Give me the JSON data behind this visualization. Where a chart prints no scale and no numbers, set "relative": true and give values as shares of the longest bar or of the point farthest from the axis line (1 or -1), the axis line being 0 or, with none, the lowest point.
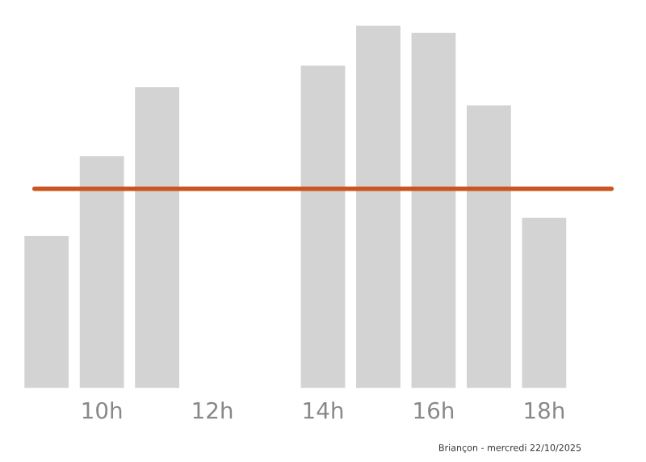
{
  "chart_data": {
    "type": "bar",
    "relative": true,
    "categories": [
      null,
      "10h",
      null,
      "12h",
      null,
      "14h",
      null,
      "16h",
      null,
      "18h",
      null
    ],
    "values": [
      0.42,
      0.64,
      0.83,
      0,
      0,
      0.89,
      1,
      0.98,
      0.78,
      0.47,
      0
    ],
    "color": "#d3d3d3",
    "ref_lines": [
      {
        "axis": "y",
        "value": 0.55,
        "color": "#c8561e",
        "line_style": "solid"
      }
    ],
    "annotations": [
      "Briançon - mercredi 22/10/2025"
    ],
    "grid": false,
    "legend": false
  }
}
